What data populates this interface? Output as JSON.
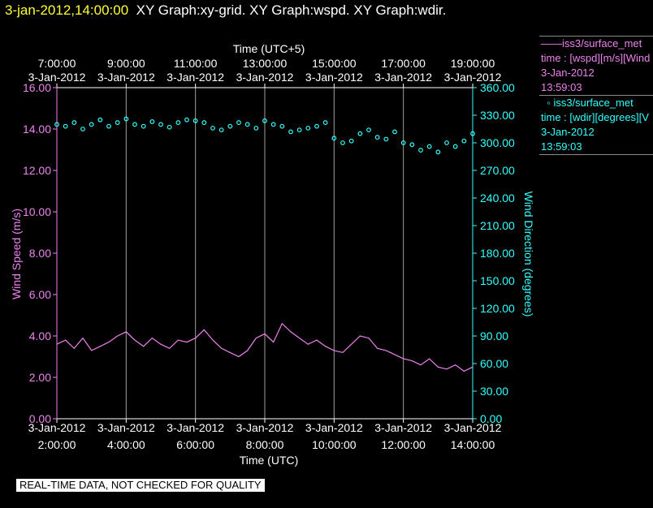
{
  "header": {
    "timestamp": "3-jan-2012,14:00:00",
    "graphs": "XY Graph:xy-grid.  XY Graph:wspd.  XY Graph:wdir."
  },
  "legend": {
    "series1": {
      "line1": "iss3/surface_met",
      "line2": "time : [wspd][m/s][Wind",
      "line3": "3-Jan-2012",
      "line4": "13:59:03"
    },
    "series2": {
      "line1": "iss3/surface_met",
      "line2": "time : [wdir][degrees][V",
      "line3": "3-Jan-2012",
      "line4": "13:59:03"
    }
  },
  "disclaimer": "REAL-TIME DATA, NOT CHECKED FOR QUALITY",
  "colors": {
    "speed": "#ee82ee",
    "direction": "#33ffff",
    "grid": "#a0a0a0",
    "axis_text": "#ffffff",
    "header_time": "#ffff33"
  },
  "chart_data": {
    "type": "line",
    "title": "",
    "x_bottom": {
      "label": "Time (UTC)",
      "ticks": [
        {
          "date": "3-Jan-2012",
          "time": "2:00:00"
        },
        {
          "date": "3-Jan-2012",
          "time": "4:00:00"
        },
        {
          "date": "3-Jan-2012",
          "time": "6:00:00"
        },
        {
          "date": "3-Jan-2012",
          "time": "8:00:00"
        },
        {
          "date": "3-Jan-2012",
          "time": "10:00:00"
        },
        {
          "date": "3-Jan-2012",
          "time": "12:00:00"
        },
        {
          "date": "3-Jan-2012",
          "time": "14:00:00"
        }
      ]
    },
    "x_top": {
      "label": "Time (UTC+5)",
      "ticks": [
        {
          "date": "3-Jan-2012",
          "time": "7:00:00"
        },
        {
          "date": "3-Jan-2012",
          "time": "9:00:00"
        },
        {
          "date": "3-Jan-2012",
          "time": "11:00:00"
        },
        {
          "date": "3-Jan-2012",
          "time": "13:00:00"
        },
        {
          "date": "3-Jan-2012",
          "time": "15:00:00"
        },
        {
          "date": "3-Jan-2012",
          "time": "17:00:00"
        },
        {
          "date": "3-Jan-2012",
          "time": "19:00:00"
        }
      ]
    },
    "y_left": {
      "label": "Wind Speed (m/s)",
      "ylim": [
        0,
        16
      ],
      "ticks": [
        "0.00",
        "2.00",
        "4.00",
        "6.00",
        "8.00",
        "10.00",
        "12.00",
        "14.00",
        "16.00"
      ]
    },
    "y_right": {
      "label": "Wind Direction (degrees)",
      "ylim": [
        0,
        360
      ],
      "ticks": [
        "0.00",
        "30.00",
        "60.00",
        "90.00",
        "120.00",
        "150.00",
        "180.00",
        "210.00",
        "240.00",
        "270.00",
        "300.00",
        "330.00",
        "360.00"
      ]
    },
    "xlim_hours_utc": [
      2.0,
      14.0
    ],
    "grid": true,
    "series": [
      {
        "type": "line",
        "axis": "left",
        "color": "#ee82ee",
        "x_hours_utc": [
          2.0,
          2.25,
          2.5,
          2.75,
          3.0,
          3.25,
          3.5,
          3.75,
          4.0,
          4.25,
          4.5,
          4.75,
          5.0,
          5.25,
          5.5,
          5.75,
          6.0,
          6.25,
          6.5,
          6.75,
          7.0,
          7.25,
          7.5,
          7.75,
          8.0,
          8.25,
          8.5,
          8.75,
          9.0,
          9.25,
          9.5,
          9.75,
          10.0,
          10.25,
          10.5,
          10.75,
          11.0,
          11.25,
          11.5,
          11.75,
          12.0,
          12.25,
          12.5,
          12.75,
          13.0,
          13.25,
          13.5,
          13.75,
          14.0
        ],
        "values": [
          3.6,
          3.8,
          3.4,
          3.9,
          3.3,
          3.5,
          3.7,
          4.0,
          4.2,
          3.8,
          3.5,
          3.9,
          3.6,
          3.4,
          3.8,
          3.7,
          3.9,
          4.3,
          3.8,
          3.4,
          3.2,
          3.0,
          3.3,
          3.9,
          4.1,
          3.7,
          4.6,
          4.2,
          3.9,
          3.6,
          3.8,
          3.5,
          3.3,
          3.2,
          3.6,
          4.0,
          3.9,
          3.4,
          3.3,
          3.1,
          2.9,
          2.8,
          2.6,
          2.9,
          2.5,
          2.4,
          2.6,
          2.3,
          2.5
        ]
      },
      {
        "type": "scatter",
        "axis": "right",
        "color": "#33ffff",
        "x_hours_utc": [
          2.0,
          2.25,
          2.5,
          2.75,
          3.0,
          3.25,
          3.5,
          3.75,
          4.0,
          4.25,
          4.5,
          4.75,
          5.0,
          5.25,
          5.5,
          5.75,
          6.0,
          6.25,
          6.5,
          6.75,
          7.0,
          7.25,
          7.5,
          7.75,
          8.0,
          8.25,
          8.5,
          8.75,
          9.0,
          9.25,
          9.5,
          9.75,
          10.0,
          10.25,
          10.5,
          10.75,
          11.0,
          11.25,
          11.5,
          11.75,
          12.0,
          12.25,
          12.5,
          12.75,
          13.0,
          13.25,
          13.5,
          13.75,
          14.0
        ],
        "values": [
          320,
          318,
          322,
          315,
          320,
          325,
          318,
          322,
          326,
          320,
          318,
          323,
          320,
          317,
          322,
          325,
          324,
          322,
          316,
          314,
          318,
          322,
          320,
          316,
          324,
          320,
          318,
          312,
          314,
          316,
          318,
          322,
          305,
          300,
          302,
          310,
          314,
          306,
          304,
          312,
          300,
          298,
          292,
          296,
          290,
          300,
          296,
          302,
          310
        ]
      }
    ]
  }
}
